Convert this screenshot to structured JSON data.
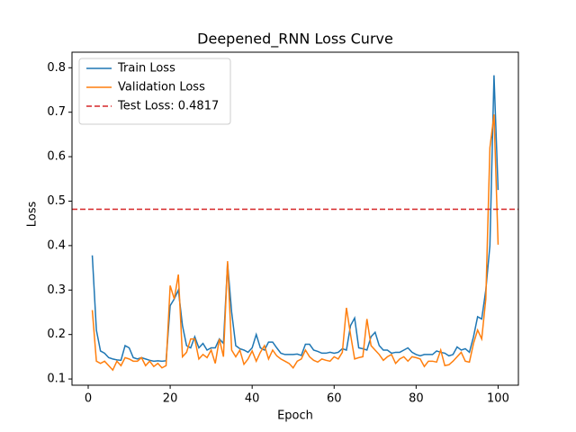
{
  "chart_data": {
    "type": "line",
    "title": "Deepened_RNN Loss Curve",
    "x_label": "Epoch",
    "y_label": "Loss",
    "x": [
      1,
      2,
      3,
      4,
      5,
      6,
      7,
      8,
      9,
      10,
      11,
      12,
      13,
      14,
      15,
      16,
      17,
      18,
      19,
      20,
      21,
      22,
      23,
      24,
      25,
      26,
      27,
      28,
      29,
      30,
      31,
      32,
      33,
      34,
      35,
      36,
      37,
      38,
      39,
      40,
      41,
      42,
      43,
      44,
      45,
      46,
      47,
      48,
      49,
      50,
      51,
      52,
      53,
      54,
      55,
      56,
      57,
      58,
      59,
      60,
      61,
      62,
      63,
      64,
      65,
      66,
      67,
      68,
      69,
      70,
      71,
      72,
      73,
      74,
      75,
      76,
      77,
      78,
      79,
      80,
      81,
      82,
      83,
      84,
      85,
      86,
      87,
      88,
      89,
      90,
      91,
      92,
      93,
      94,
      95,
      96,
      97,
      98,
      99,
      100
    ],
    "series": [
      {
        "name": "Train Loss",
        "color": "#1f77b4",
        "values": [
          0.378,
          0.21,
          0.163,
          0.158,
          0.148,
          0.145,
          0.143,
          0.142,
          0.175,
          0.17,
          0.148,
          0.145,
          0.148,
          0.145,
          0.142,
          0.14,
          0.141,
          0.14,
          0.141,
          0.265,
          0.28,
          0.3,
          0.22,
          0.175,
          0.17,
          0.195,
          0.17,
          0.18,
          0.165,
          0.17,
          0.17,
          0.19,
          0.18,
          0.36,
          0.25,
          0.175,
          0.168,
          0.165,
          0.16,
          0.17,
          0.2,
          0.17,
          0.165,
          0.183,
          0.183,
          0.17,
          0.158,
          0.155,
          0.155,
          0.155,
          0.156,
          0.153,
          0.178,
          0.178,
          0.165,
          0.162,
          0.158,
          0.158,
          0.16,
          0.158,
          0.16,
          0.168,
          0.165,
          0.22,
          0.237,
          0.17,
          0.168,
          0.165,
          0.195,
          0.205,
          0.175,
          0.165,
          0.165,
          0.158,
          0.16,
          0.16,
          0.165,
          0.17,
          0.16,
          0.155,
          0.152,
          0.155,
          0.155,
          0.155,
          0.163,
          0.16,
          0.158,
          0.152,
          0.155,
          0.172,
          0.165,
          0.168,
          0.16,
          0.195,
          0.24,
          0.235,
          0.3,
          0.4,
          0.783,
          0.525
        ]
      },
      {
        "name": "Validation Loss",
        "color": "#ff7f0e",
        "values": [
          0.255,
          0.14,
          0.135,
          0.14,
          0.13,
          0.12,
          0.14,
          0.13,
          0.148,
          0.145,
          0.14,
          0.14,
          0.148,
          0.13,
          0.14,
          0.128,
          0.135,
          0.125,
          0.13,
          0.31,
          0.28,
          0.335,
          0.15,
          0.16,
          0.19,
          0.19,
          0.145,
          0.155,
          0.148,
          0.165,
          0.135,
          0.19,
          0.15,
          0.365,
          0.165,
          0.15,
          0.165,
          0.133,
          0.145,
          0.163,
          0.14,
          0.16,
          0.175,
          0.145,
          0.165,
          0.152,
          0.145,
          0.14,
          0.135,
          0.125,
          0.14,
          0.145,
          0.165,
          0.15,
          0.142,
          0.138,
          0.145,
          0.142,
          0.14,
          0.15,
          0.145,
          0.16,
          0.26,
          0.2,
          0.145,
          0.148,
          0.15,
          0.235,
          0.175,
          0.165,
          0.155,
          0.142,
          0.15,
          0.155,
          0.135,
          0.145,
          0.15,
          0.14,
          0.15,
          0.148,
          0.145,
          0.128,
          0.14,
          0.14,
          0.138,
          0.165,
          0.13,
          0.132,
          0.14,
          0.15,
          0.16,
          0.14,
          0.138,
          0.18,
          0.21,
          0.19,
          0.28,
          0.62,
          0.695,
          0.402
        ]
      }
    ],
    "hlines": [
      {
        "name": "Test Loss: 0.4817",
        "value": 0.4817,
        "color": "#d62728"
      }
    ],
    "xlim": [
      -3.95,
      104.95
    ],
    "ylim": [
      0.086,
      0.835
    ],
    "xticks": [
      0,
      20,
      40,
      60,
      80,
      100
    ],
    "yticks": [
      0.1,
      0.2,
      0.3,
      0.4,
      0.5,
      0.6,
      0.7,
      0.8
    ],
    "legend": "upper left"
  }
}
